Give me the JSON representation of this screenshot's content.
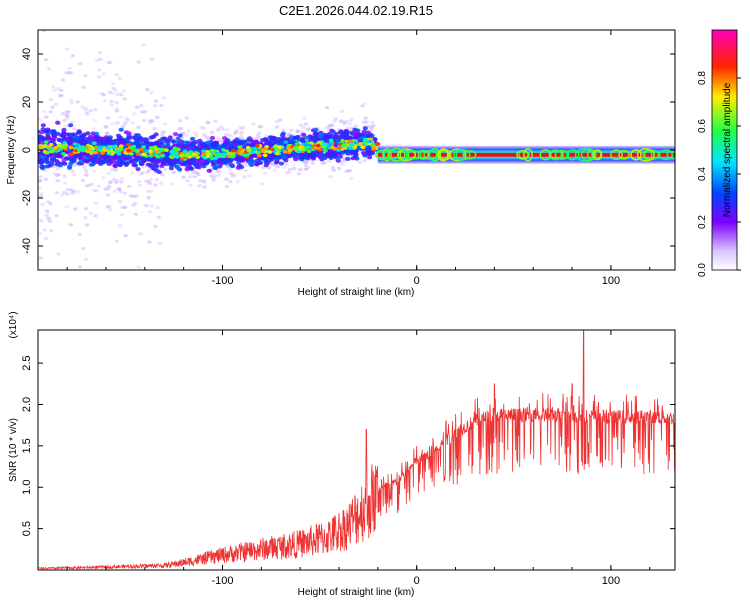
{
  "title": "C2E1.2026.044.02.19.R15",
  "colors": {
    "trace": "#ee3333",
    "frame": "#000000"
  },
  "colorbar": {
    "label": "Normalized spectral amplitude",
    "ticks": [
      "0.0",
      "0.2",
      "0.4",
      "0.6",
      "0.8"
    ],
    "tick_values": [
      0.0,
      0.2,
      0.4,
      0.6,
      0.8
    ],
    "range": [
      0,
      1
    ]
  },
  "chart_data": [
    {
      "type": "heatmap",
      "title": "C2E1.2026.044.02.19.R15",
      "xlabel": "Height of straight line (km)",
      "ylabel": "Frequency (Hz)",
      "xlim": [
        -195,
        133
      ],
      "ylim": [
        -50,
        50
      ],
      "x_ticks": [
        -100,
        0,
        100
      ],
      "x_tick_labels": [
        "-100",
        "0",
        "100"
      ],
      "y_ticks": [
        -40,
        -20,
        0,
        20,
        40
      ],
      "y_tick_labels": [
        "-40",
        "-20",
        "0",
        "20",
        "40"
      ],
      "ridge_frequency_hz": {
        "x": [
          -195,
          -150,
          -110,
          -60,
          -25,
          -20,
          0,
          50,
          100,
          133
        ],
        "y": [
          1,
          0,
          -2,
          1,
          3,
          1,
          -2,
          -2,
          -2,
          -2
        ]
      },
      "scatter_spread_hz": {
        "x": [
          -195,
          -150,
          -100,
          -60,
          -25,
          -20,
          133
        ],
        "y": [
          12,
          10,
          8,
          8,
          9,
          2,
          1.5
        ]
      },
      "color_scale": "normalized spectral amplitude 0 to 1"
    },
    {
      "type": "line",
      "xlabel": "Height of straight line (km)",
      "ylabel": "SNR (10 * v/v)",
      "y_multiplier": "(x10⁴)",
      "xlim": [
        -195,
        133
      ],
      "ylim": [
        0,
        2.9
      ],
      "x_ticks": [
        -100,
        0,
        100
      ],
      "x_tick_labels": [
        "-100",
        "0",
        "100"
      ],
      "y_ticks": [
        0.5,
        1.0,
        1.5,
        2.0,
        2.5
      ],
      "y_tick_labels": [
        "0.5",
        "1.0",
        "1.5",
        "2.0",
        "2.5"
      ],
      "series": [
        {
          "name": "SNR",
          "x": [
            -195,
            -160,
            -130,
            -120,
            -100,
            -80,
            -60,
            -45,
            -35,
            -25,
            -20,
            -15,
            -10,
            0,
            10,
            20,
            30,
            40,
            50,
            60,
            70,
            80,
            90,
            100,
            110,
            120,
            133
          ],
          "y": [
            0.02,
            0.04,
            0.06,
            0.1,
            0.2,
            0.28,
            0.35,
            0.45,
            0.6,
            0.9,
            1.0,
            1.05,
            1.1,
            1.35,
            1.5,
            1.7,
            1.85,
            1.92,
            1.92,
            1.93,
            1.92,
            1.92,
            1.9,
            1.9,
            1.9,
            1.9,
            1.88
          ]
        }
      ],
      "notable_peaks": [
        {
          "x": -26,
          "y": 1.7
        },
        {
          "x": 15,
          "y": 1.8
        },
        {
          "x": 40,
          "y": 2.25
        },
        {
          "x": 80,
          "y": 2.25
        },
        {
          "x": 86,
          "y": 2.9
        }
      ]
    }
  ]
}
